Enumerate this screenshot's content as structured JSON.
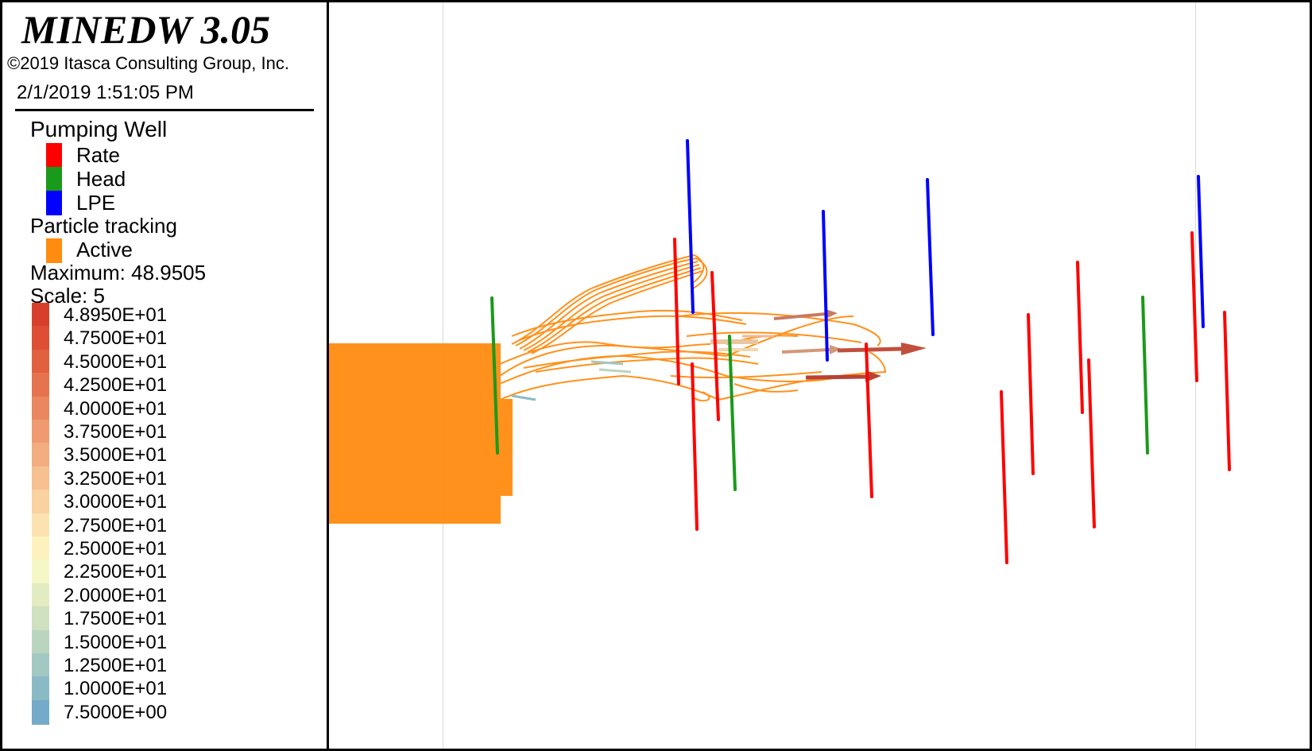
{
  "app": {
    "title": "MINEDW 3.05",
    "copyright": "©2019 Itasca Consulting Group, Inc.",
    "timestamp": "2/1/2019 1:51:05 PM"
  },
  "legend": {
    "pumping_well": {
      "title": "Pumping Well",
      "items": [
        {
          "label": "Rate",
          "color": "#ff0000"
        },
        {
          "label": "Head",
          "color": "#1a9a1a"
        },
        {
          "label": "LPE",
          "color": "#0000ff"
        }
      ]
    },
    "particle_tracking": {
      "title": "Particle tracking",
      "items": [
        {
          "label": "Active",
          "color": "#ff8c10"
        }
      ]
    },
    "maximum_label": "Maximum: 48.9505",
    "scale_label": "Scale: 5",
    "color_ramp": [
      {
        "label": "4.8950E+01",
        "color": "#d73f2c"
      },
      {
        "label": "4.7500E+01",
        "color": "#dd4e35"
      },
      {
        "label": "4.5000E+01",
        "color": "#e1603f"
      },
      {
        "label": "4.2500E+01",
        "color": "#e5734f"
      },
      {
        "label": "4.0000E+01",
        "color": "#ea8660"
      },
      {
        "label": "3.7500E+01",
        "color": "#ef9a71"
      },
      {
        "label": "3.5000E+01",
        "color": "#f2ad80"
      },
      {
        "label": "3.2500E+01",
        "color": "#f6c090"
      },
      {
        "label": "3.0000E+01",
        "color": "#f9d2a0"
      },
      {
        "label": "2.7500E+01",
        "color": "#fbe2ae"
      },
      {
        "label": "2.5000E+01",
        "color": "#fdf2be"
      },
      {
        "label": "2.2500E+01",
        "color": "#f5f7c7"
      },
      {
        "label": "2.0000E+01",
        "color": "#e3ecc0"
      },
      {
        "label": "1.7500E+01",
        "color": "#cfe1bf"
      },
      {
        "label": "1.5000E+01",
        "color": "#b9d5c0"
      },
      {
        "label": "1.2500E+01",
        "color": "#a2c8c4"
      },
      {
        "label": "1.0000E+01",
        "color": "#8bbac7"
      },
      {
        "label": "7.5000E+00",
        "color": "#74abc9"
      }
    ]
  },
  "viewport": {
    "particle_color": "#ff8c10",
    "rate_color": "#ff0000",
    "head_color": "#1a9a1a",
    "lpe_color": "#0000ff",
    "arrow_color": "#c0503c"
  }
}
